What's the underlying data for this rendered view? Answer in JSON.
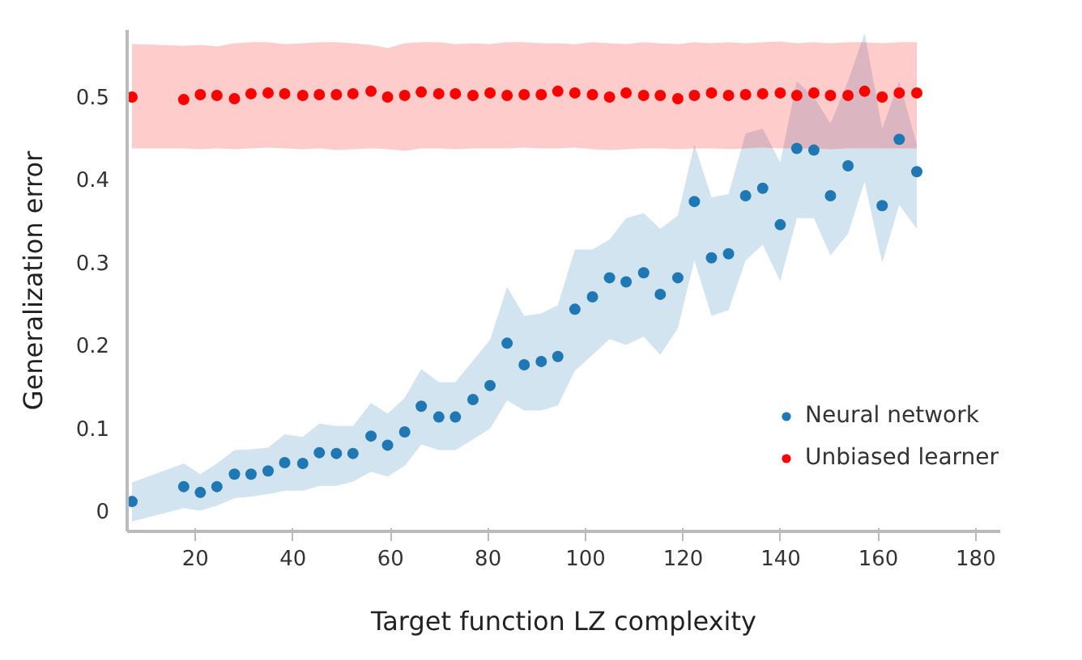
{
  "chart_data": {
    "type": "scatter",
    "xlabel": "Target function LZ complexity",
    "ylabel": "Generalization error",
    "x": [
      7,
      17.6,
      21,
      24.4,
      28,
      31.4,
      34.9,
      38.3,
      42,
      45.4,
      48.9,
      52.3,
      56,
      59.4,
      62.9,
      66.3,
      69.9,
      73.3,
      76.9,
      80.4,
      83.9,
      87.4,
      90.9,
      94.3,
      97.8,
      101.4,
      104.9,
      108.3,
      111.9,
      115.3,
      118.9,
      122.3,
      125.8,
      129.3,
      132.8,
      136.3,
      139.9,
      143.3,
      146.8,
      150.2,
      153.8,
      157.2,
      160.8,
      164.3,
      167.9
    ],
    "series": [
      {
        "name": "Neural network",
        "color": "#1f77b4",
        "values": [
          0.011,
          0.029,
          0.022,
          0.029,
          0.044,
          0.044,
          0.048,
          0.058,
          0.057,
          0.07,
          0.069,
          0.069,
          0.09,
          0.079,
          0.095,
          0.126,
          0.113,
          0.113,
          0.134,
          0.151,
          0.202,
          0.176,
          0.18,
          0.186,
          0.243,
          0.258,
          0.281,
          0.276,
          0.287,
          0.261,
          0.281,
          0.373,
          0.305,
          0.31,
          0.38,
          0.389,
          0.345,
          0.437,
          0.435,
          0.38,
          0.416,
          null,
          0.368,
          0.448,
          0.409
        ],
        "lower": [
          -0.013,
          0.003,
          0.0,
          0.006,
          0.015,
          0.017,
          0.02,
          0.024,
          0.024,
          0.03,
          0.03,
          0.035,
          0.047,
          0.041,
          0.054,
          0.08,
          0.073,
          0.073,
          0.086,
          0.099,
          0.133,
          0.121,
          0.121,
          0.127,
          0.169,
          0.188,
          0.207,
          0.2,
          0.21,
          0.188,
          0.22,
          0.302,
          0.235,
          0.242,
          0.302,
          0.321,
          0.277,
          0.353,
          0.353,
          0.308,
          0.334,
          0.397,
          0.299,
          0.369,
          0.34
        ],
        "upper": [
          0.034,
          0.057,
          0.044,
          0.057,
          0.073,
          0.074,
          0.076,
          0.092,
          0.089,
          0.105,
          0.102,
          0.102,
          0.13,
          0.117,
          0.136,
          0.171,
          0.155,
          0.155,
          0.181,
          0.206,
          0.27,
          0.235,
          0.238,
          0.248,
          0.315,
          0.315,
          0.327,
          0.353,
          0.359,
          0.34,
          0.356,
          0.442,
          0.378,
          0.382,
          0.455,
          0.461,
          0.42,
          0.518,
          0.499,
          0.467,
          0.518,
          0.576,
          0.461,
          0.518,
          0.442
        ]
      },
      {
        "name": "Unbiased learner",
        "color": "#ff0000",
        "values": [
          0.499,
          0.496,
          0.502,
          0.501,
          0.497,
          0.503,
          0.504,
          0.503,
          0.501,
          0.502,
          0.502,
          0.503,
          0.506,
          0.499,
          0.501,
          0.505,
          0.503,
          0.503,
          0.501,
          0.504,
          0.501,
          0.502,
          0.502,
          0.506,
          0.504,
          0.502,
          0.499,
          0.504,
          0.501,
          0.501,
          0.497,
          0.501,
          0.504,
          0.501,
          0.502,
          0.503,
          0.504,
          0.501,
          0.504,
          0.501,
          0.501,
          0.506,
          0.499,
          0.504,
          0.504
        ],
        "lower": [
          0.437,
          0.437,
          0.436,
          0.437,
          0.436,
          0.437,
          0.438,
          0.437,
          0.436,
          0.437,
          0.435,
          0.436,
          0.437,
          0.436,
          0.434,
          0.437,
          0.437,
          0.436,
          0.437,
          0.437,
          0.437,
          0.438,
          0.437,
          0.437,
          0.438,
          0.436,
          0.435,
          0.436,
          0.437,
          0.437,
          0.436,
          0.437,
          0.437,
          0.436,
          0.437,
          0.438,
          0.437,
          0.437,
          0.437,
          0.436,
          0.437,
          0.437,
          0.437,
          0.437,
          0.437
        ],
        "upper": [
          0.563,
          0.561,
          0.562,
          0.56,
          0.564,
          0.565,
          0.565,
          0.563,
          0.564,
          0.565,
          0.565,
          0.564,
          0.562,
          0.558,
          0.564,
          0.565,
          0.565,
          0.563,
          0.564,
          0.563,
          0.565,
          0.565,
          0.564,
          0.564,
          0.563,
          0.565,
          0.564,
          0.563,
          0.565,
          0.564,
          0.563,
          0.565,
          0.564,
          0.565,
          0.564,
          0.565,
          0.566,
          0.564,
          0.565,
          0.564,
          0.565,
          0.565,
          0.564,
          0.565,
          0.565
        ]
      }
    ],
    "xlim": [
      6,
      185
    ],
    "ylim": [
      -0.025,
      0.58
    ],
    "xticks": [
      20,
      40,
      60,
      80,
      100,
      120,
      140,
      160,
      180
    ],
    "yticks": [
      0,
      0.1,
      0.2,
      0.3,
      0.4,
      0.5
    ],
    "marker": "circle",
    "legend": "bottom right",
    "grid": false
  }
}
